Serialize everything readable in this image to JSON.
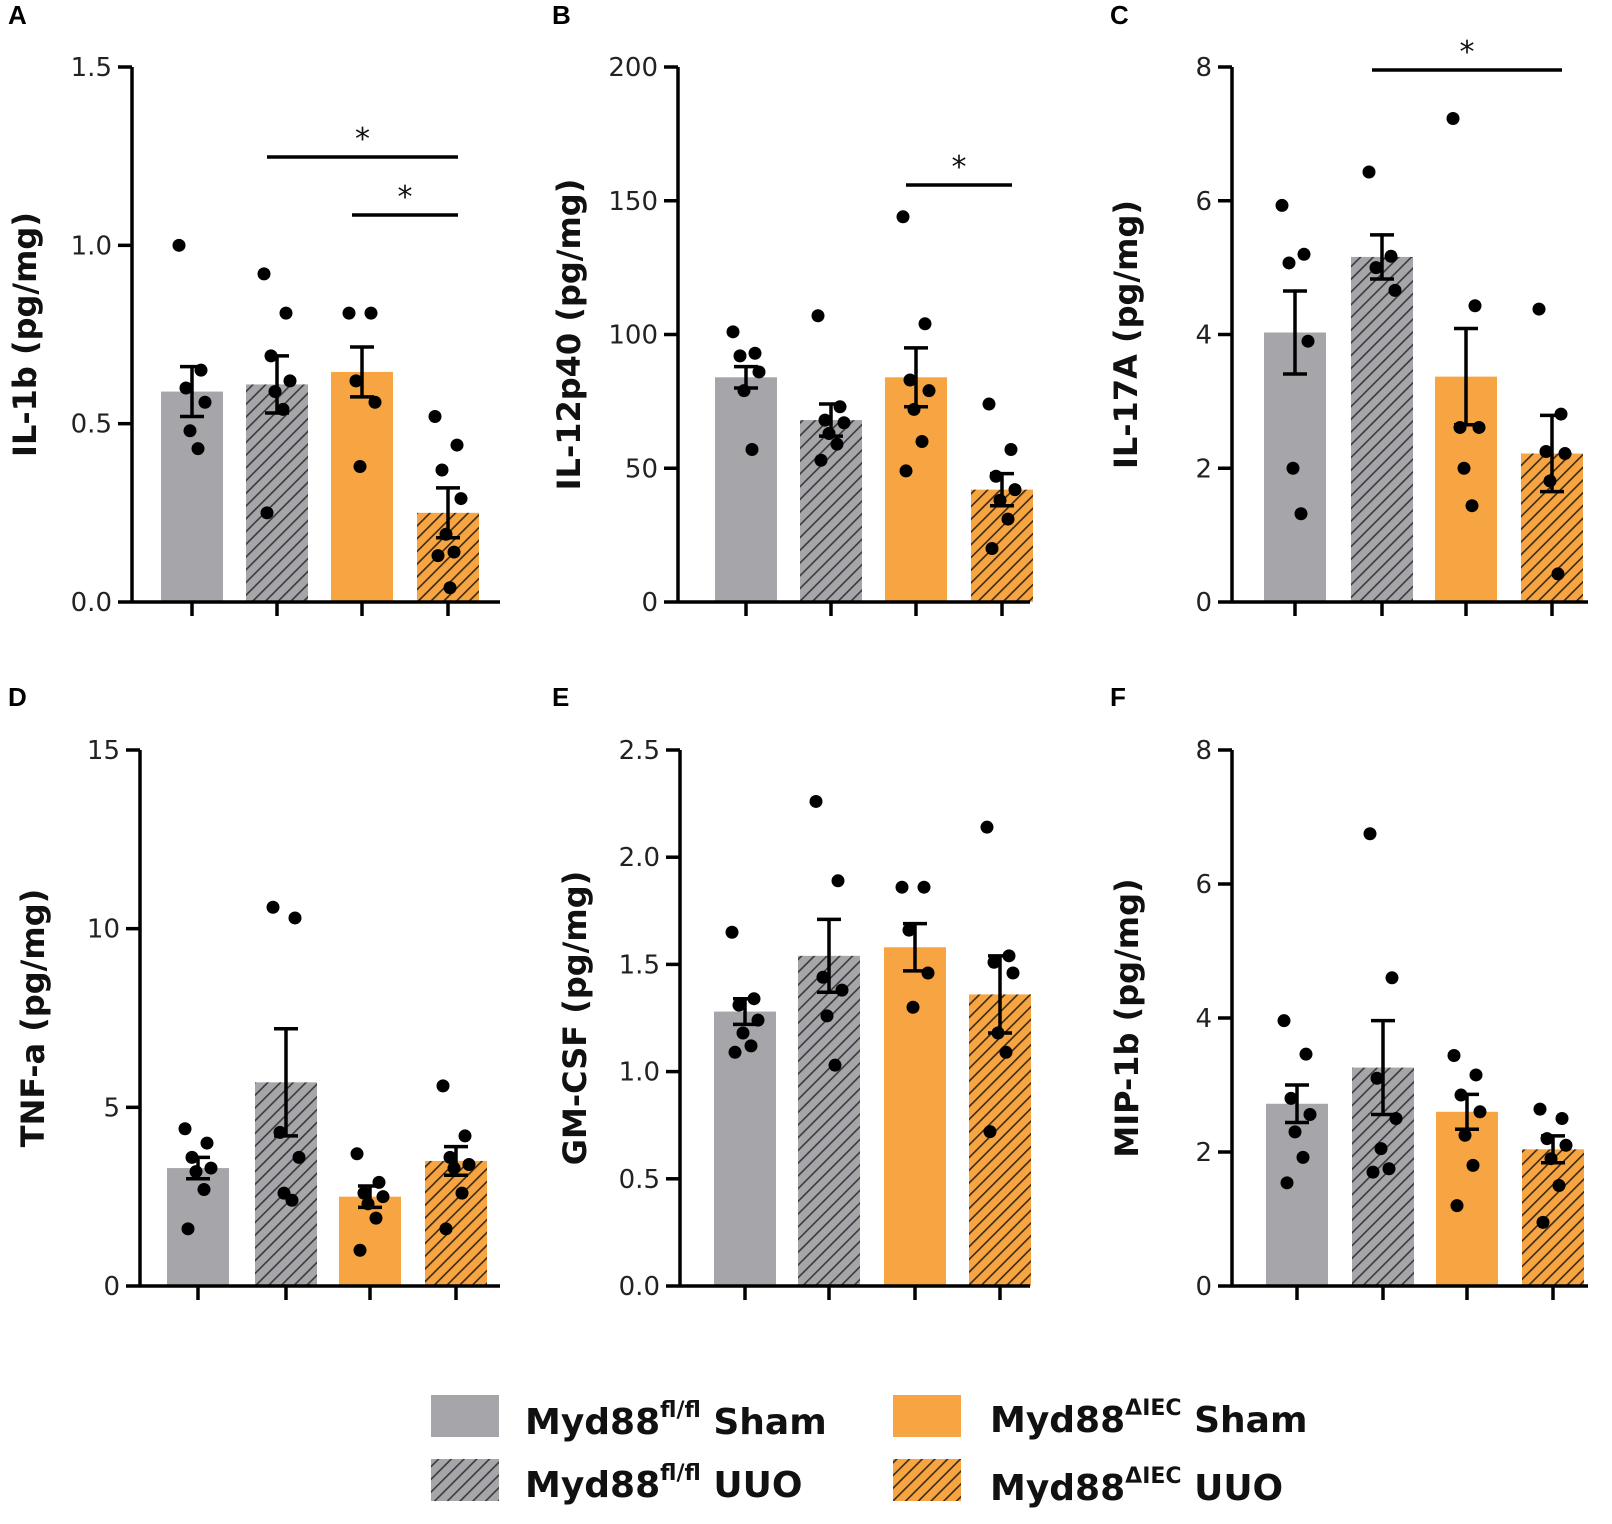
{
  "figure": {
    "colors": {
      "gray": "#a6a6aa",
      "orange": "#f7a443",
      "ink": "#000000"
    }
  },
  "legend": {
    "entries": [
      {
        "name": "legend-flfl-sham",
        "base": "Myd88",
        "sup": "fl/fl",
        "suffix": " Sham",
        "color": "gray",
        "hatch": false
      },
      {
        "name": "legend-flfl-uuo",
        "base": "Myd88",
        "sup": "fl/fl",
        "suffix": " UUO",
        "color": "gray",
        "hatch": true
      },
      {
        "name": "legend-diec-sham",
        "base": "Myd88",
        "sup": "ΔIEC",
        "suffix": " Sham",
        "color": "orange",
        "hatch": false
      },
      {
        "name": "legend-diec-uuo",
        "base": "Myd88",
        "sup": "ΔIEC",
        "suffix": " UUO",
        "color": "orange",
        "hatch": true
      }
    ]
  },
  "chart_data": [
    {
      "type": "bar",
      "panel": "A",
      "ylabel": "IL-1b (pg/mg)",
      "ylim": [
        0,
        1.5
      ],
      "yticks": [
        0,
        0.5,
        1.0,
        1.5
      ],
      "ytick_labels": [
        "0.0",
        "0.5",
        "1.0",
        "1.5"
      ],
      "categories": [
        "Myd88fl/fl Sham",
        "Myd88fl/fl UUO",
        "Myd88ΔIEC Sham",
        "Myd88ΔIEC UUO"
      ],
      "values": [
        0.59,
        0.61,
        0.645,
        0.25
      ],
      "sem": [
        0.07,
        0.08,
        0.07,
        0.07
      ],
      "points": [
        [
          1.0,
          0.65,
          0.6,
          0.56,
          0.48,
          0.43
        ],
        [
          0.92,
          0.81,
          0.69,
          0.62,
          0.59,
          0.54,
          0.25
        ],
        [
          0.81,
          0.81,
          0.62,
          0.56,
          0.38
        ],
        [
          0.52,
          0.44,
          0.37,
          0.29,
          0.19,
          0.14,
          0.13,
          0.04
        ]
      ],
      "significance": [
        {
          "from": 1,
          "to": 3,
          "label": "*"
        },
        {
          "from": 2,
          "to": 3,
          "label": "*"
        }
      ]
    },
    {
      "type": "bar",
      "panel": "B",
      "ylabel": "IL-12p40 (pg/mg)",
      "ylim": [
        0,
        200
      ],
      "yticks": [
        0,
        50,
        100,
        150,
        200
      ],
      "ytick_labels": [
        "0",
        "50",
        "100",
        "150",
        "200"
      ],
      "categories": [
        "Myd88fl/fl Sham",
        "Myd88fl/fl UUO",
        "Myd88ΔIEC Sham",
        "Myd88ΔIEC UUO"
      ],
      "values": [
        84,
        68,
        84,
        42
      ],
      "sem": [
        4,
        6,
        11,
        6
      ],
      "points": [
        [
          101,
          93,
          92,
          86,
          79,
          57
        ],
        [
          107,
          73,
          68,
          67,
          63,
          59,
          53
        ],
        [
          144,
          104,
          83,
          79,
          72,
          60,
          49
        ],
        [
          74,
          57,
          47,
          42,
          38,
          31,
          20
        ]
      ],
      "significance": [
        {
          "from": 2,
          "to": 3,
          "label": "*"
        }
      ]
    },
    {
      "type": "bar",
      "panel": "C",
      "ylabel": "IL-17A (pg/mg)",
      "ylim": [
        0,
        8
      ],
      "yticks": [
        0,
        2,
        4,
        6,
        8
      ],
      "ytick_labels": [
        "0",
        "2",
        "4",
        "6",
        "8"
      ],
      "categories": [
        "Myd88fl/fl Sham",
        "Myd88fl/fl UUO",
        "Myd88ΔIEC Sham",
        "Myd88ΔIEC UUO"
      ],
      "values": [
        4.03,
        5.16,
        3.37,
        2.22
      ],
      "sem": [
        0.62,
        0.33,
        0.72,
        0.57
      ],
      "points": [
        [
          5.93,
          5.2,
          5.07,
          3.9,
          2.0,
          1.32
        ],
        [
          6.43,
          5.17,
          5.0,
          4.66
        ],
        [
          7.23,
          4.43,
          2.61,
          2.61,
          2.0,
          1.44
        ],
        [
          4.38,
          2.81,
          2.25,
          2.22,
          1.81,
          0.42
        ]
      ],
      "significance": [
        {
          "from": 1,
          "to": 3,
          "label": "*"
        }
      ]
    },
    {
      "type": "bar",
      "panel": "D",
      "ylabel": "TNF-a (pg/mg)",
      "ylim": [
        0,
        15
      ],
      "yticks": [
        0,
        5,
        10,
        15
      ],
      "ytick_labels": [
        "0",
        "5",
        "10",
        "15"
      ],
      "categories": [
        "Myd88fl/fl Sham",
        "Myd88fl/fl UUO",
        "Myd88ΔIEC Sham",
        "Myd88ΔIEC UUO"
      ],
      "values": [
        3.3,
        5.7,
        2.5,
        3.5
      ],
      "sem": [
        0.3,
        1.5,
        0.3,
        0.4
      ],
      "points": [
        [
          4.4,
          4.0,
          3.6,
          3.3,
          3.2,
          2.7,
          1.6
        ],
        [
          10.6,
          10.3,
          4.3,
          3.6,
          2.6,
          2.4
        ],
        [
          3.7,
          2.9,
          2.6,
          2.5,
          2.3,
          1.9,
          1.0
        ],
        [
          5.6,
          4.2,
          3.6,
          3.4,
          3.3,
          2.6,
          1.6
        ]
      ],
      "significance": []
    },
    {
      "type": "bar",
      "panel": "E",
      "ylabel": "GM-CSF (pg/mg)",
      "ylim": [
        0,
        2.5
      ],
      "yticks": [
        0,
        0.5,
        1.0,
        1.5,
        2.0,
        2.5
      ],
      "ytick_labels": [
        "0.0",
        "0.5",
        "1.0",
        "1.5",
        "2.0",
        "2.5"
      ],
      "categories": [
        "Myd88fl/fl Sham",
        "Myd88fl/fl UUO",
        "Myd88ΔIEC Sham",
        "Myd88ΔIEC UUO"
      ],
      "values": [
        1.28,
        1.54,
        1.58,
        1.36
      ],
      "sem": [
        0.06,
        0.17,
        0.11,
        0.18
      ],
      "points": [
        [
          1.65,
          1.34,
          1.31,
          1.24,
          1.18,
          1.12,
          1.09
        ],
        [
          2.26,
          1.89,
          1.44,
          1.38,
          1.26,
          1.03
        ],
        [
          1.86,
          1.86,
          1.66,
          1.46,
          1.3
        ],
        [
          2.14,
          1.54,
          1.51,
          1.46,
          1.18,
          1.09,
          0.72
        ]
      ],
      "significance": []
    },
    {
      "type": "bar",
      "panel": "F",
      "ylabel": "MIP-1b (pg/mg)",
      "ylim": [
        0,
        8
      ],
      "yticks": [
        0,
        2,
        4,
        6,
        8
      ],
      "ytick_labels": [
        "0",
        "2",
        "4",
        "6",
        "8"
      ],
      "categories": [
        "Myd88fl/fl Sham",
        "Myd88fl/fl UUO",
        "Myd88ΔIEC Sham",
        "Myd88ΔIEC UUO"
      ],
      "values": [
        2.72,
        3.26,
        2.6,
        2.04
      ],
      "sem": [
        0.28,
        0.7,
        0.26,
        0.2
      ],
      "points": [
        [
          3.96,
          3.46,
          2.8,
          2.56,
          2.3,
          1.92,
          1.54
        ],
        [
          6.75,
          4.6,
          3.1,
          2.5,
          2.05,
          1.75,
          1.7
        ],
        [
          3.44,
          3.15,
          2.85,
          2.6,
          2.25,
          1.8,
          1.2
        ],
        [
          2.64,
          2.5,
          2.2,
          2.1,
          1.9,
          1.5,
          0.95
        ]
      ],
      "significance": []
    }
  ]
}
